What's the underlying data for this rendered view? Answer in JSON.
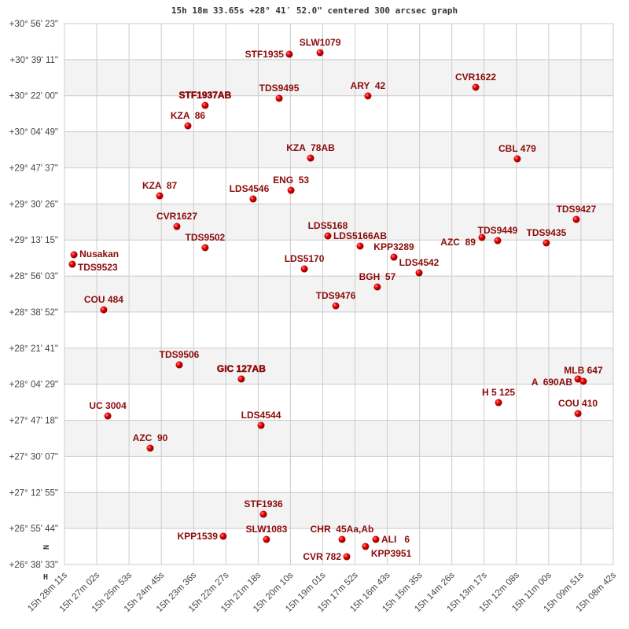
{
  "chart_data": {
    "type": "scatter",
    "title": "15h 18m 33.65s +28° 41′ 52.0\" centered 300 arcsec graph",
    "x_axis": {
      "quantity": "right ascension (hours)",
      "range": [
        15.46972,
        15.145
      ],
      "reversed": true,
      "tick_labels": [
        "15h 28m 11s",
        "15h 27m 02s",
        "15h 25m 53s",
        "15h 24m 45s",
        "15h 23m 36s",
        "15h 22m 27s",
        "15h 21m 18s",
        "15h 20m 10s",
        "15h 19m 01s",
        "15h 17m 52s",
        "15h 16m 43s",
        "15h 15m 35s",
        "15h 14m 26s",
        "15h 13m 17s",
        "15h 12m 08s",
        "15h 11m 00s",
        "15h 09m 51s",
        "15h 08m 42s"
      ]
    },
    "y_axis": {
      "quantity": "declination (degrees)",
      "range": [
        26.6425,
        30.93972
      ],
      "tick_labels": [
        "+30° 56' 23\"",
        "+30° 39' 11\"",
        "+30° 22' 00\"",
        "+30° 04' 49\"",
        "+29° 47' 37\"",
        "+29° 30' 26\"",
        "+29° 13' 15\"",
        "+28° 56' 03\"",
        "+28° 38' 52\"",
        "+28° 21' 41\"",
        "+28° 04' 29\"",
        "+27° 47' 18\"",
        "+27° 30' 07\"",
        "+27° 12' 55\"",
        "+26° 55' 44\"",
        "+26° 38' 33\""
      ]
    },
    "grid": true,
    "alternating_bands": true,
    "orientation_markers": {
      "north": "N",
      "east": "H"
    },
    "colors": {
      "point": "#e00000",
      "label": "#8b0a0a",
      "grid": "#cccccc",
      "band": "#f3f3f3"
    },
    "points": [
      {
        "name": "STF1935",
        "ra": 15.3367,
        "dec": 30.6961
      },
      {
        "name": "SLW1079",
        "ra": 15.3185,
        "dec": 30.7086
      },
      {
        "name": "TDS9495",
        "ra": 15.3427,
        "dec": 30.3463
      },
      {
        "name": "ARY  42",
        "ra": 15.2902,
        "dec": 30.3651
      },
      {
        "name": "CVR1622",
        "ra": 15.2264,
        "dec": 30.4338
      },
      {
        "name": "STF1937AB",
        "ra": 15.3865,
        "dec": 30.2901,
        "bold": true
      },
      {
        "name": "KZA  86",
        "ra": 15.3967,
        "dec": 30.1277
      },
      {
        "name": "KZA  78AB",
        "ra": 15.3241,
        "dec": 29.8716
      },
      {
        "name": "CBL 479",
        "ra": 15.2018,
        "dec": 29.8654
      },
      {
        "name": "KZA  87",
        "ra": 15.4134,
        "dec": 29.5718
      },
      {
        "name": "ENG  53",
        "ra": 15.3357,
        "dec": 29.6155
      },
      {
        "name": "LDS4546",
        "ra": 15.3581,
        "dec": 29.5468
      },
      {
        "name": "CVR1627",
        "ra": 15.4032,
        "dec": 29.3282
      },
      {
        "name": "TDS9502",
        "ra": 15.3865,
        "dec": 29.1596
      },
      {
        "name": "Nusakan",
        "ra": 15.4641,
        "dec": 29.1034
      },
      {
        "name": "TDS9523",
        "ra": 15.4651,
        "dec": 29.0284
      },
      {
        "name": "LDS5168",
        "ra": 15.3139,
        "dec": 29.2533
      },
      {
        "name": "LDS5166AB",
        "ra": 15.2948,
        "dec": 29.1721
      },
      {
        "name": "KPP3289",
        "ra": 15.2748,
        "dec": 29.0846
      },
      {
        "name": "LDS4542",
        "ra": 15.2599,
        "dec": 28.9597
      },
      {
        "name": "LDS5170",
        "ra": 15.3278,
        "dec": 28.9909
      },
      {
        "name": "BGH  57",
        "ra": 15.2846,
        "dec": 28.8473
      },
      {
        "name": "TDS9476",
        "ra": 15.3092,
        "dec": 28.6974
      },
      {
        "name": "AZC  89",
        "ra": 15.2227,
        "dec": 29.2408
      },
      {
        "name": "TDS9449",
        "ra": 15.2134,
        "dec": 29.2158
      },
      {
        "name": "TDS9435",
        "ra": 15.1846,
        "dec": 29.1971
      },
      {
        "name": "TDS9427",
        "ra": 15.1669,
        "dec": 29.3844
      },
      {
        "name": "COU 484",
        "ra": 15.4465,
        "dec": 28.6662
      },
      {
        "name": "TDS9506",
        "ra": 15.4018,
        "dec": 28.2289
      },
      {
        "name": "GIC 127AB",
        "ra": 15.3651,
        "dec": 28.1165,
        "bold": true
      },
      {
        "name": "UC 3004",
        "ra": 15.4441,
        "dec": 27.8229
      },
      {
        "name": "LDS4544",
        "ra": 15.3534,
        "dec": 27.748
      },
      {
        "name": "AZC  90",
        "ra": 15.419,
        "dec": 27.5669
      },
      {
        "name": "H 5 125",
        "ra": 15.2129,
        "dec": 27.9291
      },
      {
        "name": "A  690AB",
        "ra": 15.1659,
        "dec": 28.1165
      },
      {
        "name": "MLB 647",
        "ra": 15.1627,
        "dec": 28.0978
      },
      {
        "name": "COU 410",
        "ra": 15.1659,
        "dec": 27.8417
      },
      {
        "name": "STF1936",
        "ra": 15.352,
        "dec": 27.0422
      },
      {
        "name": "KPP1539",
        "ra": 15.3758,
        "dec": 26.8673
      },
      {
        "name": "SLW1083",
        "ra": 15.3502,
        "dec": 26.8423
      },
      {
        "name": "CHR  45Aa,Ab",
        "ra": 15.3055,
        "dec": 26.8423
      },
      {
        "name": "ALI   6",
        "ra": 15.2855,
        "dec": 26.8423
      },
      {
        "name": "KPP3951",
        "ra": 15.2916,
        "dec": 26.7861
      },
      {
        "name": "CVR 782",
        "ra": 15.3027,
        "dec": 26.7049
      }
    ]
  }
}
